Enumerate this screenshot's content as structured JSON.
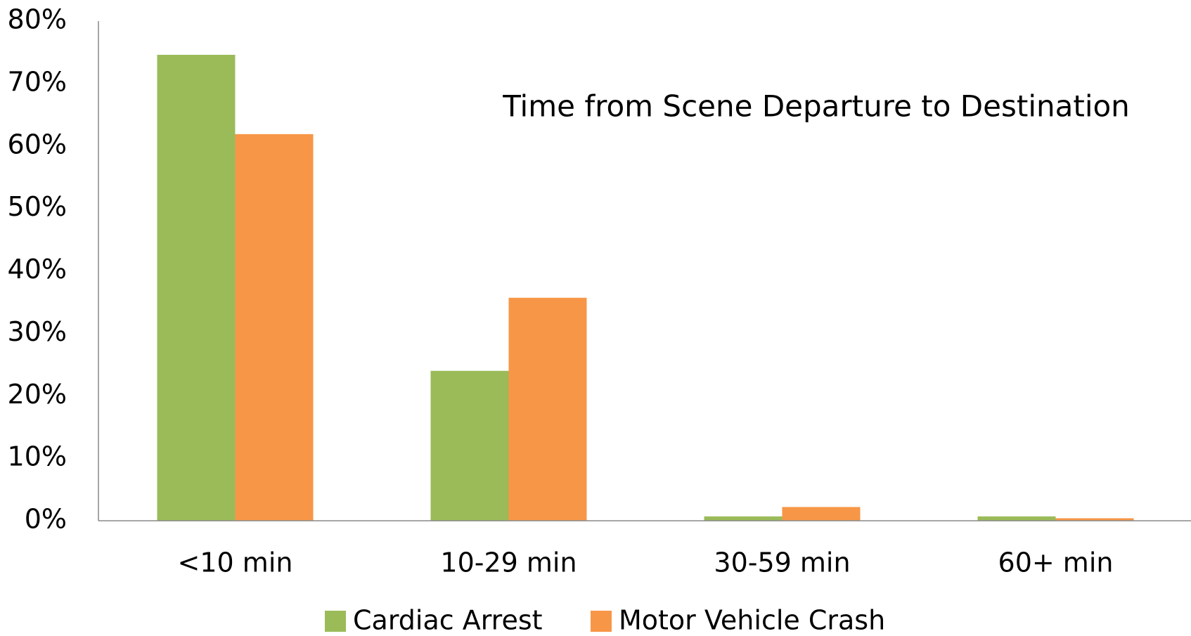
{
  "chart_data": {
    "type": "bar",
    "title": "Time from Scene Departure to Destination",
    "categories": [
      "<10 min",
      "10-29 min",
      "30-59 min",
      "60+ min"
    ],
    "series": [
      {
        "name": "Cardiac Arrest",
        "color": "#9bbb59",
        "values": [
          74.6,
          24.0,
          0.7,
          0.7
        ]
      },
      {
        "name": "Motor Vehicle Crash",
        "color": "#f79646",
        "values": [
          61.9,
          35.7,
          2.2,
          0.4
        ]
      }
    ],
    "ylim": [
      0,
      80
    ],
    "yticks": [
      {
        "value": 0,
        "label": "0%"
      },
      {
        "value": 10,
        "label": "10%"
      },
      {
        "value": 20,
        "label": "20%"
      },
      {
        "value": 30,
        "label": "30%"
      },
      {
        "value": 40,
        "label": "40%"
      },
      {
        "value": 50,
        "label": "50%"
      },
      {
        "value": 60,
        "label": "60%"
      },
      {
        "value": 70,
        "label": "70%"
      },
      {
        "value": 80,
        "label": "80%"
      }
    ],
    "grid": false
  }
}
